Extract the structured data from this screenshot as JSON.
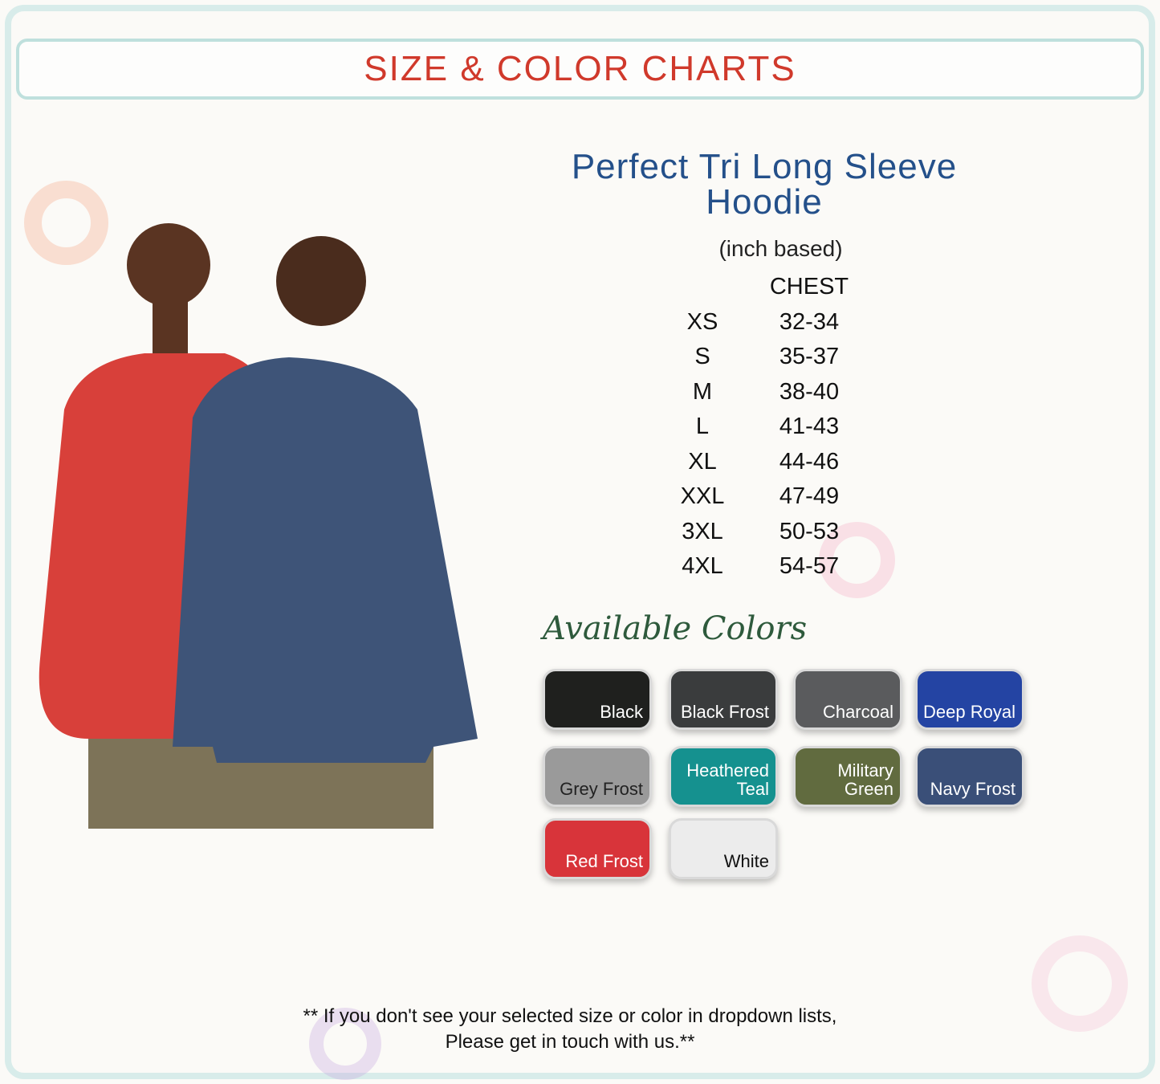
{
  "header": {
    "title": "SIZE & COLOR CHARTS"
  },
  "product": {
    "title_line1": "Perfect Tri Long Sleeve",
    "title_line2": "Hoodie",
    "unit_note": "(inch based)"
  },
  "size_table": {
    "headers": [
      "",
      "CHEST"
    ],
    "rows": [
      [
        "XS",
        "32-34"
      ],
      [
        "S",
        "35-37"
      ],
      [
        "M",
        "38-40"
      ],
      [
        "L",
        "41-43"
      ],
      [
        "XL",
        "44-46"
      ],
      [
        "XXL",
        "47-49"
      ],
      [
        "3XL",
        "50-53"
      ],
      [
        "4XL",
        "54-57"
      ]
    ]
  },
  "colors": {
    "heading": "Available Colors",
    "swatches": [
      {
        "name": "Black",
        "hex": "#1f201e",
        "text": "#ffffff"
      },
      {
        "name": "Black Frost",
        "hex": "#3a3c3d",
        "text": "#ffffff"
      },
      {
        "name": "Charcoal",
        "hex": "#5a5b5d",
        "text": "#ffffff"
      },
      {
        "name": "Deep Royal",
        "hex": "#2444a3",
        "text": "#ffffff"
      },
      {
        "name": "Grey Frost",
        "hex": "#9a9a9a",
        "text": "#222222"
      },
      {
        "name": "Heathered Teal",
        "hex": "#15918f",
        "text": "#ffffff"
      },
      {
        "name": "Military Green",
        "hex": "#616b3f",
        "text": "#ffffff"
      },
      {
        "name": "Navy Frost",
        "hex": "#3a4f78",
        "text": "#ffffff"
      },
      {
        "name": "Red Frost",
        "hex": "#d8343a",
        "text": "#ffffff"
      },
      {
        "name": "White",
        "hex": "#ececec",
        "text": "#111111"
      }
    ]
  },
  "footer": {
    "line1": "** If you don't see your selected size or color in dropdown lists,",
    "line2": "Please get in touch with us.**"
  }
}
